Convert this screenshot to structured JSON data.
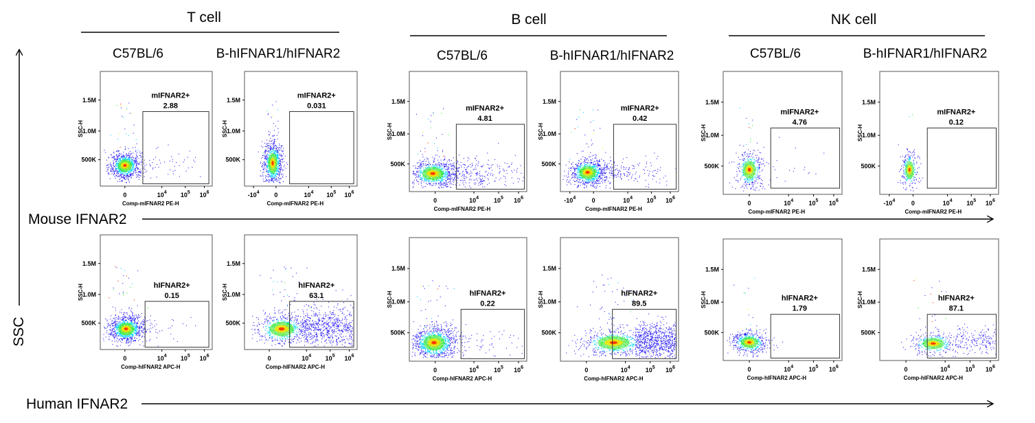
{
  "colors": {
    "density_low": "#2a1cf5",
    "density_mid": "#00d2ff",
    "density_mid2": "#35e83a",
    "density_high": "#ffe600",
    "density_peak": "#ff2a00"
  },
  "cell_types": [
    "T cell",
    "B cell",
    "NK cell"
  ],
  "strains": [
    "C57BL/6",
    "B-hIFNAR1/hIFNAR2"
  ],
  "axes": {
    "x_arrow_top": "Mouse IFNAR2",
    "x_arrow_bottom": "Human IFNAR2",
    "y_arrow": "SSC"
  },
  "chart_data": [
    {
      "type": "scatter",
      "row": "mouse",
      "cell": "T cell",
      "strain": "C57BL/6",
      "gate_label": "mIFNAR2+",
      "percent": "2.88",
      "xlabel": "Comp-mIFNAR2 PE-H",
      "ylabel": "SSC-H",
      "xticks": [
        "0",
        "10^4",
        "10^5",
        "10^6"
      ],
      "yticks": [
        "500K",
        "1.0M",
        "1.5M"
      ]
    },
    {
      "type": "scatter",
      "row": "mouse",
      "cell": "T cell",
      "strain": "B-hIFNAR1/hIFNAR2",
      "gate_label": "mIFNAR2+",
      "percent": "0.031",
      "xlabel": "Comp-mIFNAR2 PE-H",
      "ylabel": "SSC-H",
      "xticks": [
        "-10^4",
        "0",
        "10^4",
        "10^5",
        "10^6"
      ],
      "yticks": [
        "500K",
        "1.0M",
        "1.5M"
      ]
    },
    {
      "type": "scatter",
      "row": "mouse",
      "cell": "B cell",
      "strain": "C57BL/6",
      "gate_label": "mIFNAR2+",
      "percent": "4.81",
      "xlabel": "Comp-mIFNAR2 PE-H",
      "ylabel": "SSC-H",
      "xticks": [
        "0",
        "10^4",
        "10^5",
        "10^6"
      ],
      "yticks": [
        "500K",
        "1.0M",
        "1.5M"
      ]
    },
    {
      "type": "scatter",
      "row": "mouse",
      "cell": "B cell",
      "strain": "B-hIFNAR1/hIFNAR2",
      "gate_label": "mIFNAR2+",
      "percent": "0.42",
      "xlabel": "Comp-mIFNAR2 PE-H",
      "ylabel": "SSC-H",
      "xticks": [
        "-10^4",
        "0",
        "10^4",
        "10^5",
        "10^6"
      ],
      "yticks": [
        "500K",
        "1.0M",
        "1.5M"
      ]
    },
    {
      "type": "scatter",
      "row": "mouse",
      "cell": "NK cell",
      "strain": "C57BL/6",
      "gate_label": "mIFNAR2+",
      "percent": "4.76",
      "xlabel": "Comp-mIFNAR2 PE-H",
      "ylabel": "SSC-H",
      "xticks": [
        "0",
        "10^4",
        "10^5",
        "10^6"
      ],
      "yticks": [
        "500K",
        "1.0M",
        "1.5M"
      ]
    },
    {
      "type": "scatter",
      "row": "mouse",
      "cell": "NK cell",
      "strain": "B-hIFNAR1/hIFNAR2",
      "gate_label": "mIFNAR2+",
      "percent": "0.12",
      "xlabel": "Comp-mIFNAR2 PE-H",
      "ylabel": "SSC-H",
      "xticks": [
        "-10^4",
        "0",
        "10^4",
        "10^5",
        "10^6"
      ],
      "yticks": [
        "500K",
        "1.0M",
        "1.5M"
      ]
    },
    {
      "type": "scatter",
      "row": "human",
      "cell": "T cell",
      "strain": "C57BL/6",
      "gate_label": "hIFNAR2+",
      "percent": "0.15",
      "xlabel": "Comp-hIFNAR2 APC-H",
      "ylabel": "SSC-H",
      "xticks": [
        "0",
        "10^4",
        "10^5",
        "10^6"
      ],
      "yticks": [
        "500K",
        "1.0M",
        "1.5M"
      ]
    },
    {
      "type": "scatter",
      "row": "human",
      "cell": "T cell",
      "strain": "B-hIFNAR1/hIFNAR2",
      "gate_label": "hIFNAR2+",
      "percent": "63.1",
      "xlabel": "Comp-hIFNAR2 APC-H",
      "ylabel": "SSC-H",
      "xticks": [
        "0",
        "10^4",
        "10^5",
        "10^6"
      ],
      "yticks": [
        "500K",
        "1.0M",
        "1.5M"
      ]
    },
    {
      "type": "scatter",
      "row": "human",
      "cell": "B cell",
      "strain": "C57BL/6",
      "gate_label": "hIFNAR2+",
      "percent": "0.22",
      "xlabel": "Comp-hIFNAR2 APC-H",
      "ylabel": "SSC-H",
      "xticks": [
        "0",
        "10^4",
        "10^5",
        "10^6"
      ],
      "yticks": [
        "500K",
        "1.0M",
        "1.5M"
      ]
    },
    {
      "type": "scatter",
      "row": "human",
      "cell": "B cell",
      "strain": "B-hIFNAR1/hIFNAR2",
      "gate_label": "hIFNAR2+",
      "percent": "89.5",
      "xlabel": "Comp-hIFNAR2 APC-H",
      "ylabel": "SSC-H",
      "xticks": [
        "0",
        "10^4",
        "10^5",
        "10^6"
      ],
      "yticks": [
        "500K",
        "1.0M",
        "1.5M"
      ]
    },
    {
      "type": "scatter",
      "row": "human",
      "cell": "NK cell",
      "strain": "C57BL/6",
      "gate_label": "hIFNAR2+",
      "percent": "1.79",
      "xlabel": "Comp-hIFNAR2 APC-H",
      "ylabel": "SSC-H",
      "xticks": [
        "0",
        "10^4",
        "10^5",
        "10^6"
      ],
      "yticks": [
        "500K",
        "1.0M",
        "1.5M"
      ]
    },
    {
      "type": "scatter",
      "row": "human",
      "cell": "NK cell",
      "strain": "B-hIFNAR1/hIFNAR2",
      "gate_label": "hIFNAR2+",
      "percent": "87.1",
      "xlabel": "Comp-hIFNAR2 APC-H",
      "ylabel": "SSC-H",
      "xticks": [
        "0",
        "10^4",
        "10^5",
        "10^6"
      ],
      "yticks": [
        "500K",
        "1.0M",
        "1.5M"
      ]
    }
  ]
}
